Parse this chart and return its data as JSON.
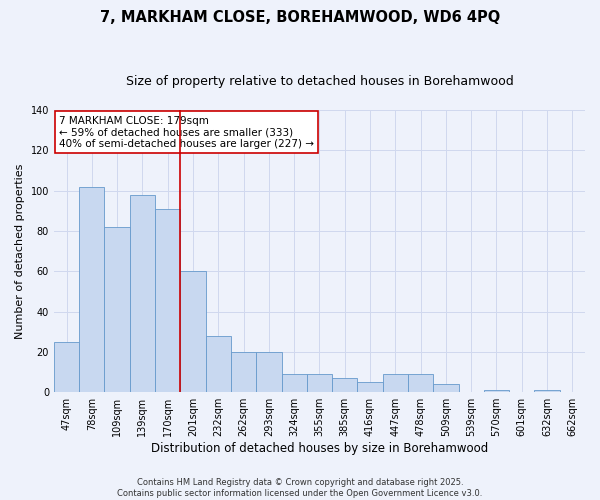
{
  "title": "7, MARKHAM CLOSE, BOREHAMWOOD, WD6 4PQ",
  "subtitle": "Size of property relative to detached houses in Borehamwood",
  "xlabel": "Distribution of detached houses by size in Borehamwood",
  "ylabel": "Number of detached properties",
  "categories": [
    "47sqm",
    "78sqm",
    "109sqm",
    "139sqm",
    "170sqm",
    "201sqm",
    "232sqm",
    "262sqm",
    "293sqm",
    "324sqm",
    "355sqm",
    "385sqm",
    "416sqm",
    "447sqm",
    "478sqm",
    "509sqm",
    "539sqm",
    "570sqm",
    "601sqm",
    "632sqm",
    "662sqm"
  ],
  "values": [
    25,
    102,
    82,
    98,
    91,
    60,
    28,
    20,
    20,
    9,
    9,
    7,
    5,
    9,
    9,
    4,
    0,
    1,
    0,
    1,
    0
  ],
  "bar_color": "#c8d8f0",
  "bar_edge_color": "#6699cc",
  "vline_x": 4.5,
  "vline_color": "#cc0000",
  "annotation_text": "7 MARKHAM CLOSE: 179sqm\n← 59% of detached houses are smaller (333)\n40% of semi-detached houses are larger (227) →",
  "annotation_box_facecolor": "white",
  "annotation_box_edgecolor": "#cc0000",
  "ylim": [
    0,
    140
  ],
  "yticks": [
    0,
    20,
    40,
    60,
    80,
    100,
    120,
    140
  ],
  "background_color": "#eef2fb",
  "grid_color": "#d0d8ee",
  "footer_line1": "Contains HM Land Registry data © Crown copyright and database right 2025.",
  "footer_line2": "Contains public sector information licensed under the Open Government Licence v3.0.",
  "title_fontsize": 10.5,
  "subtitle_fontsize": 9,
  "xlabel_fontsize": 8.5,
  "ylabel_fontsize": 8,
  "tick_fontsize": 7,
  "annotation_fontsize": 7.5,
  "footer_fontsize": 6
}
